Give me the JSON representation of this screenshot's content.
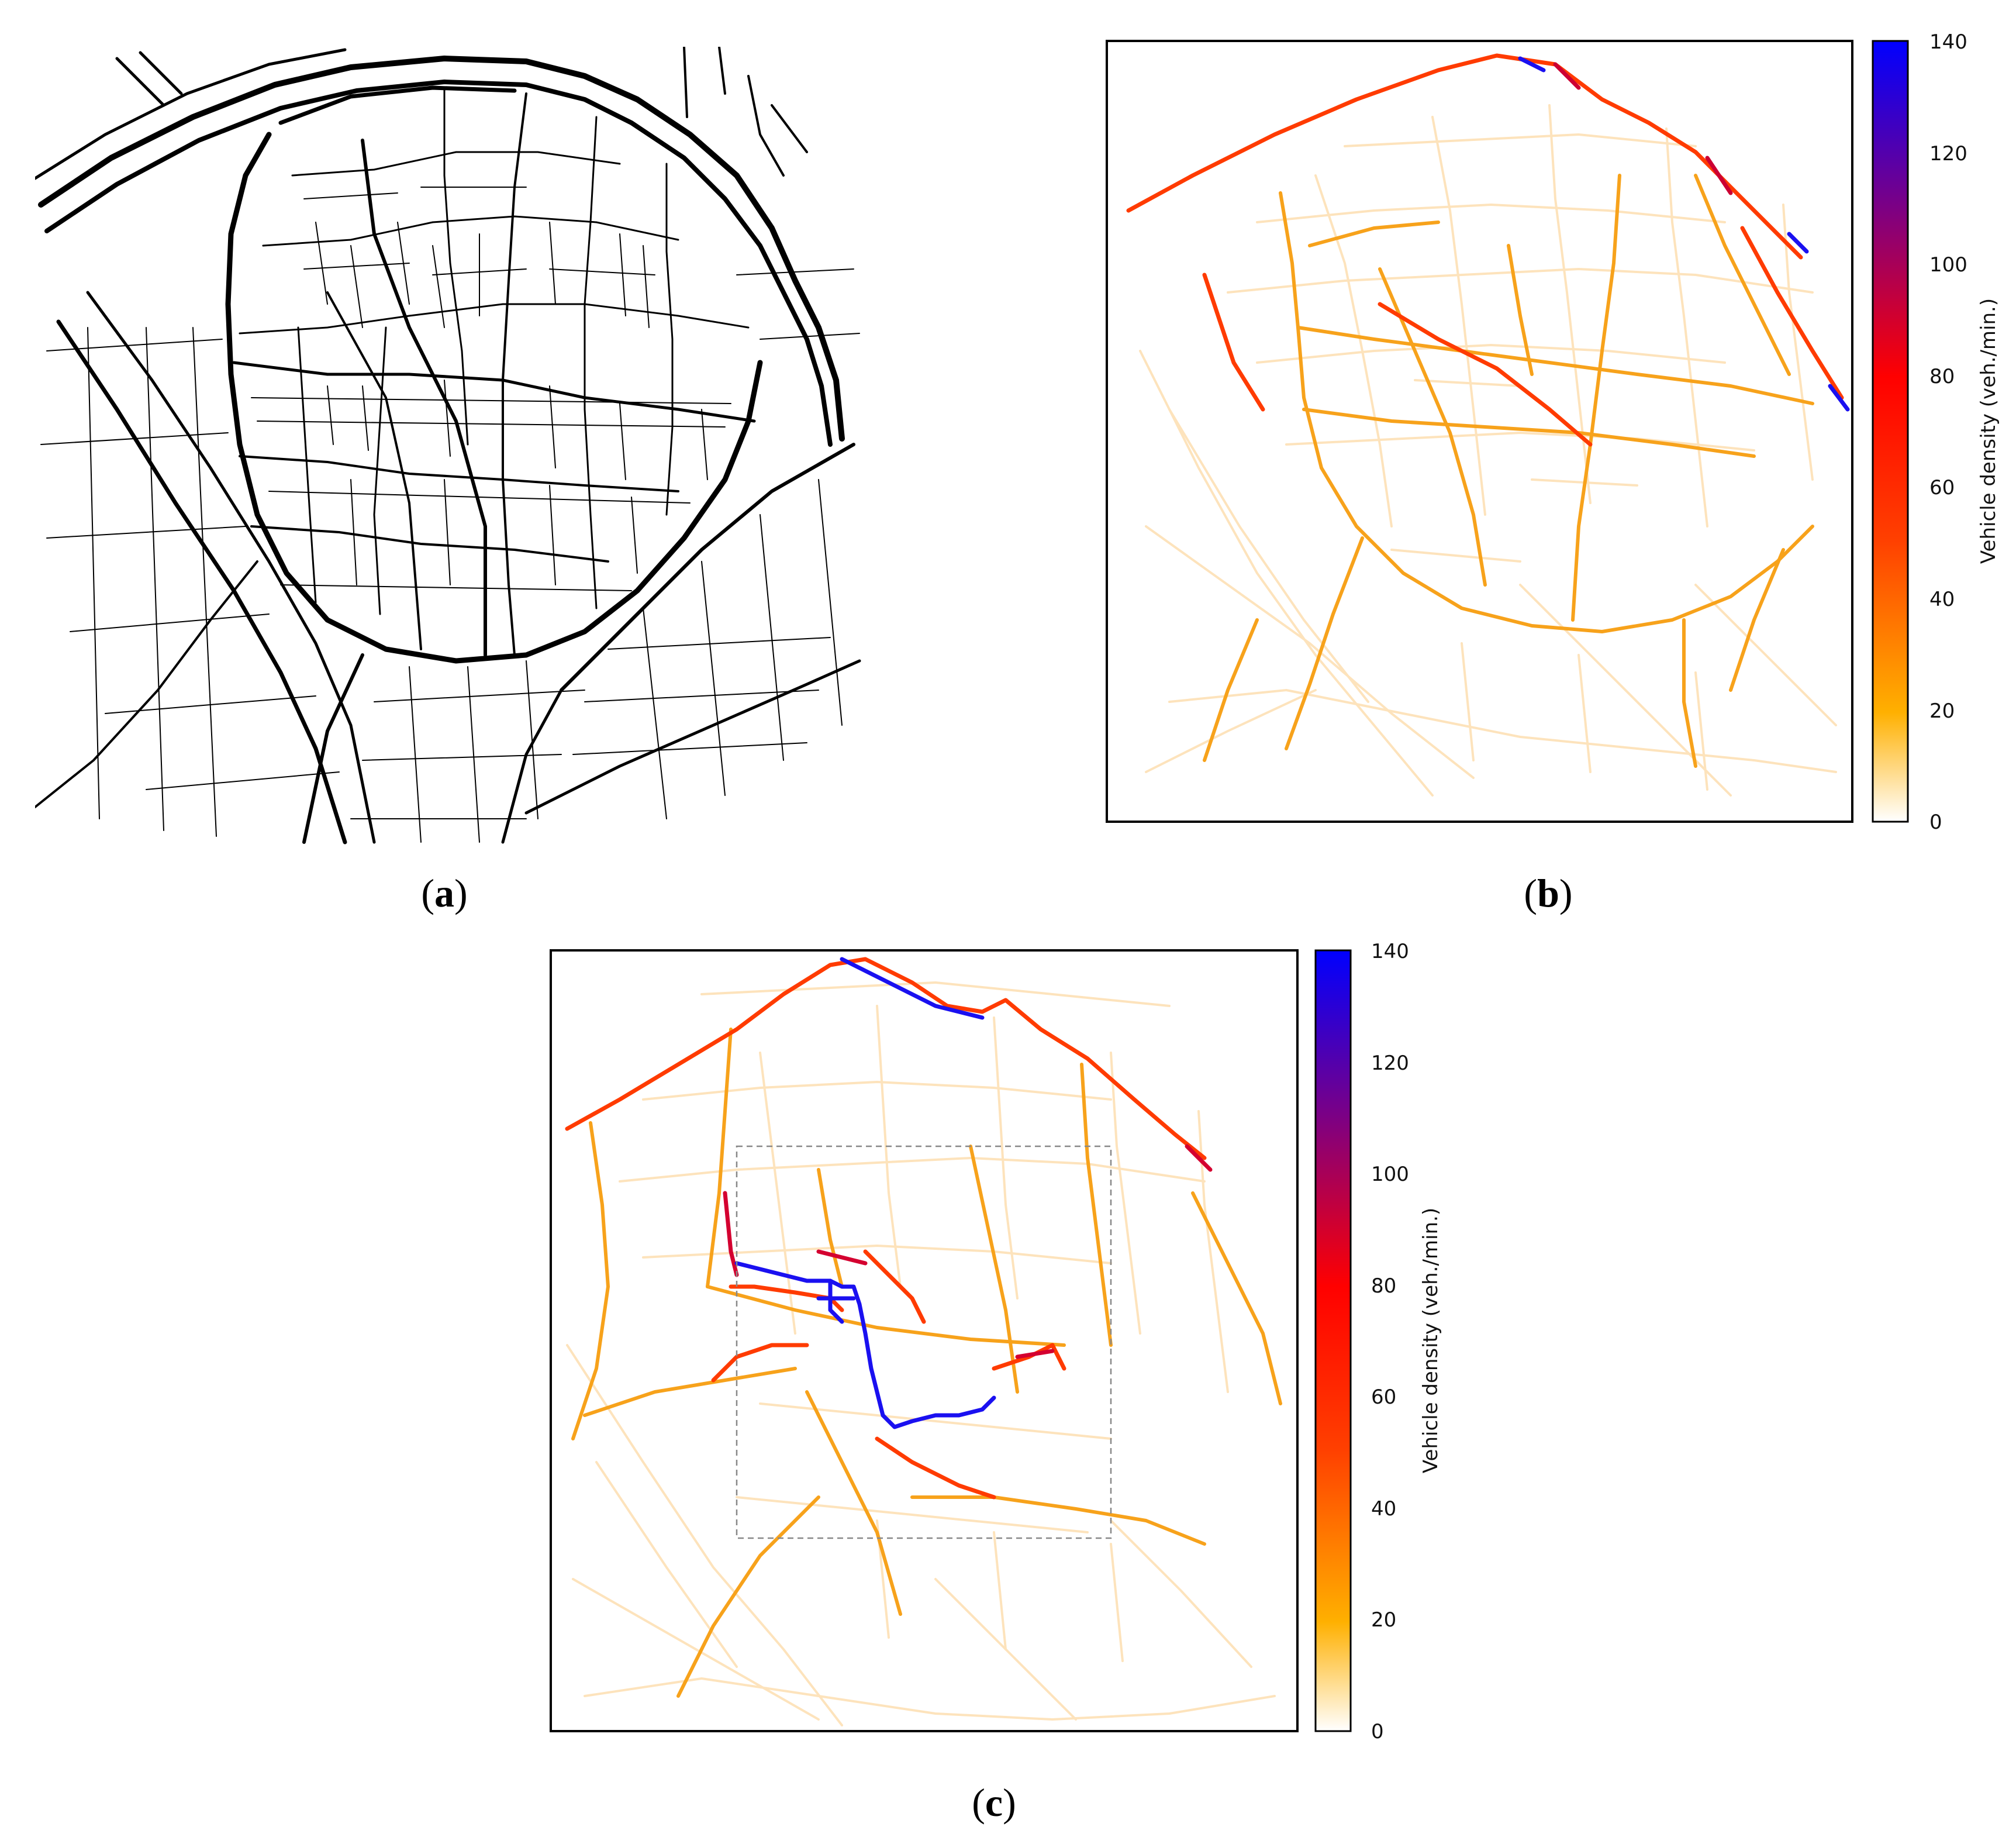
{
  "panels": [
    {
      "id": "a",
      "label": "(a)",
      "label_letter": "a"
    },
    {
      "id": "b",
      "label": "(b)",
      "label_letter": "b"
    },
    {
      "id": "c",
      "label": "(c)",
      "label_letter": "c"
    }
  ],
  "colorbar": {
    "title": "Vehicle density (veh./min.)",
    "ticks": [
      "0",
      "20",
      "40",
      "60",
      "80",
      "100",
      "120",
      "140"
    ],
    "range": [
      0,
      140
    ],
    "colors": [
      "#ffffff",
      "#ffb000",
      "#ff4000",
      "#ff0000",
      "#800080",
      "#0000ff"
    ]
  },
  "colors": {
    "network": "#000000",
    "low": "#fde6c4",
    "medium": "#f7a21b",
    "high": "#ff2a00",
    "very_high": "#d40030",
    "max": "#1010f0",
    "selection_box": "#888888"
  }
}
